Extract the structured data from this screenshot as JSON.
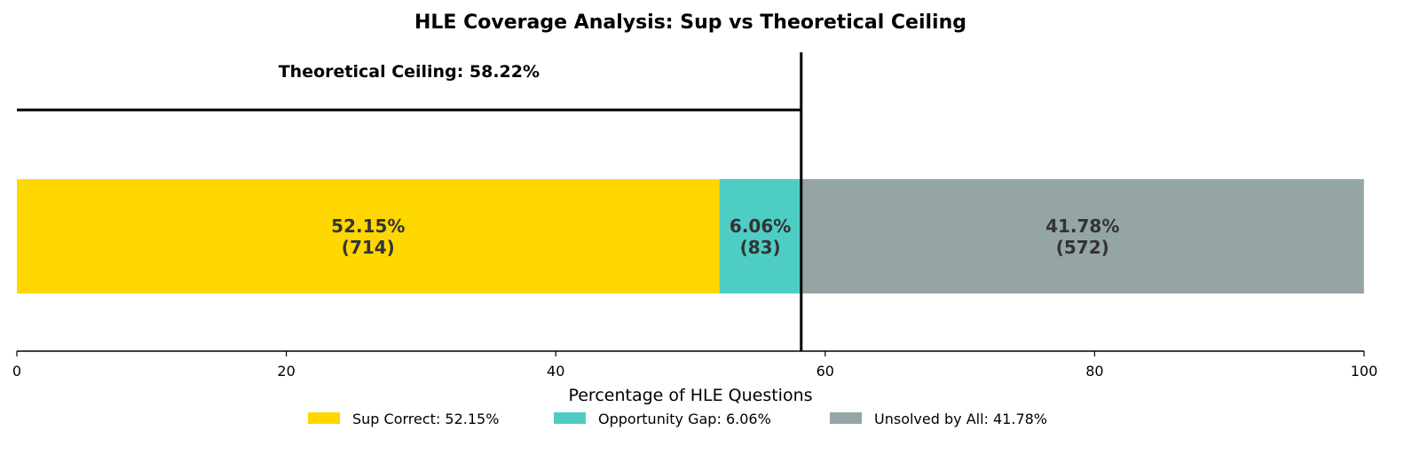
{
  "chart_data": {
    "type": "bar",
    "orientation": "horizontal-stacked",
    "title": "HLE Coverage Analysis: Sup vs Theoretical Ceiling",
    "xlabel": "Percentage of HLE Questions",
    "ylabel": "",
    "xlim": [
      0,
      100
    ],
    "xticks": [
      "0",
      "20",
      "40",
      "60",
      "80",
      "100"
    ],
    "grid": false,
    "legend_placement": "bottom-center",
    "series": [
      {
        "name": "Sup Correct: 52.15%",
        "value": 52.15,
        "count": 714,
        "label_pct": "52.15%",
        "label_count": "(714)",
        "color": "#FFD700"
      },
      {
        "name": "Opportunity Gap: 6.06%",
        "value": 6.06,
        "count": 83,
        "label_pct": "6.06%",
        "label_count": "(83)",
        "color": "#4ECDC4"
      },
      {
        "name": "Unsolved by All: 41.78%",
        "value": 41.78,
        "count": 572,
        "label_pct": "41.78%",
        "label_count": "(572)",
        "color": "#95A5A6"
      }
    ],
    "ceiling": {
      "value": 58.22,
      "label": "Theoretical Ceiling: 58.22%",
      "color": "#000000"
    }
  }
}
